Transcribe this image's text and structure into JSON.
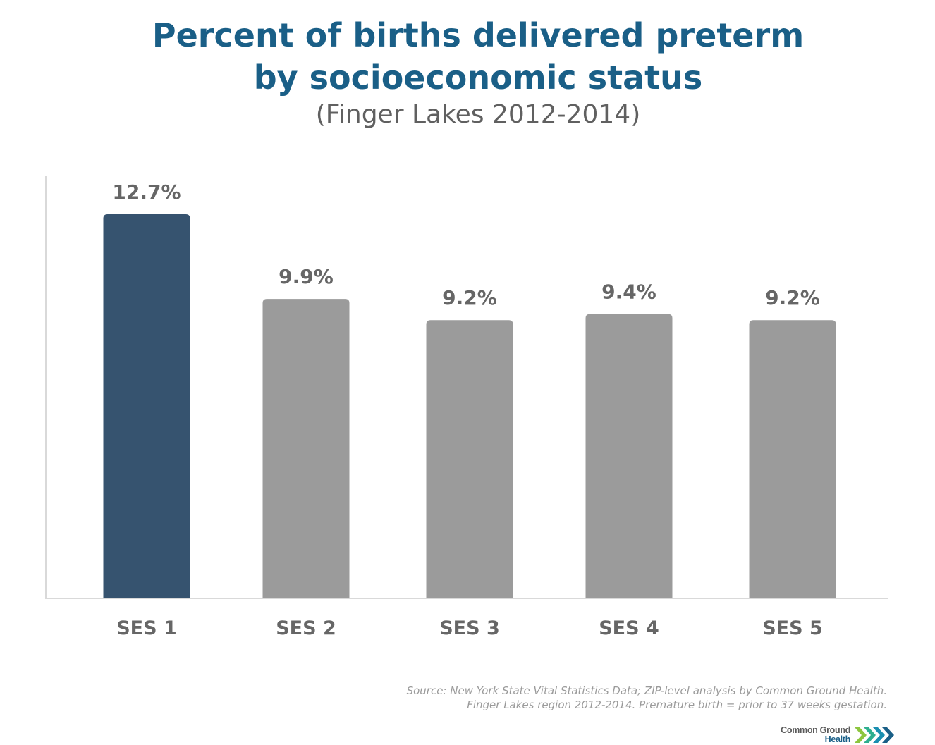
{
  "chart_data": {
    "type": "bar",
    "title": "Percent of births delivered preterm by socioeconomic status",
    "title_lines": [
      "Percent of births delivered preterm",
      "by socioeconomic status"
    ],
    "subtitle": "(Finger Lakes 2012-2014)",
    "xlabel": "",
    "ylabel": "",
    "ylim": [
      0,
      12.7
    ],
    "grid": false,
    "legend": "none",
    "categories": [
      "SES 1",
      "SES 2",
      "SES 3",
      "SES 4",
      "SES 5"
    ],
    "values": [
      12.7,
      9.9,
      9.2,
      9.4,
      9.2
    ],
    "data_labels": [
      "12.7%",
      "9.9%",
      "9.2%",
      "9.4%",
      "9.2%"
    ],
    "colors": [
      "#36536f",
      "#9b9b9b",
      "#9b9b9b",
      "#9b9b9b",
      "#9b9b9b"
    ],
    "label_color": "#666666",
    "axis_color": "#d9d9d9"
  },
  "footer": {
    "source_line1": "Source: New York State Vital Statistics Data; ZIP-level analysis by Common Ground Health.",
    "source_line2": "Finger Lakes region 2012-2014. Premature birth = prior to 37 weeks gestation."
  },
  "logo": {
    "line1": "Common Ground",
    "line2": "Health",
    "icon": "chevron-arrows-icon",
    "colors": [
      "#8dc63f",
      "#2eaf8f",
      "#1a8fb0",
      "#1a5f87"
    ]
  },
  "theme": {
    "title_color": "#1a5f87",
    "subtitle_color": "#606060",
    "source_color": "#9a9a9a"
  }
}
